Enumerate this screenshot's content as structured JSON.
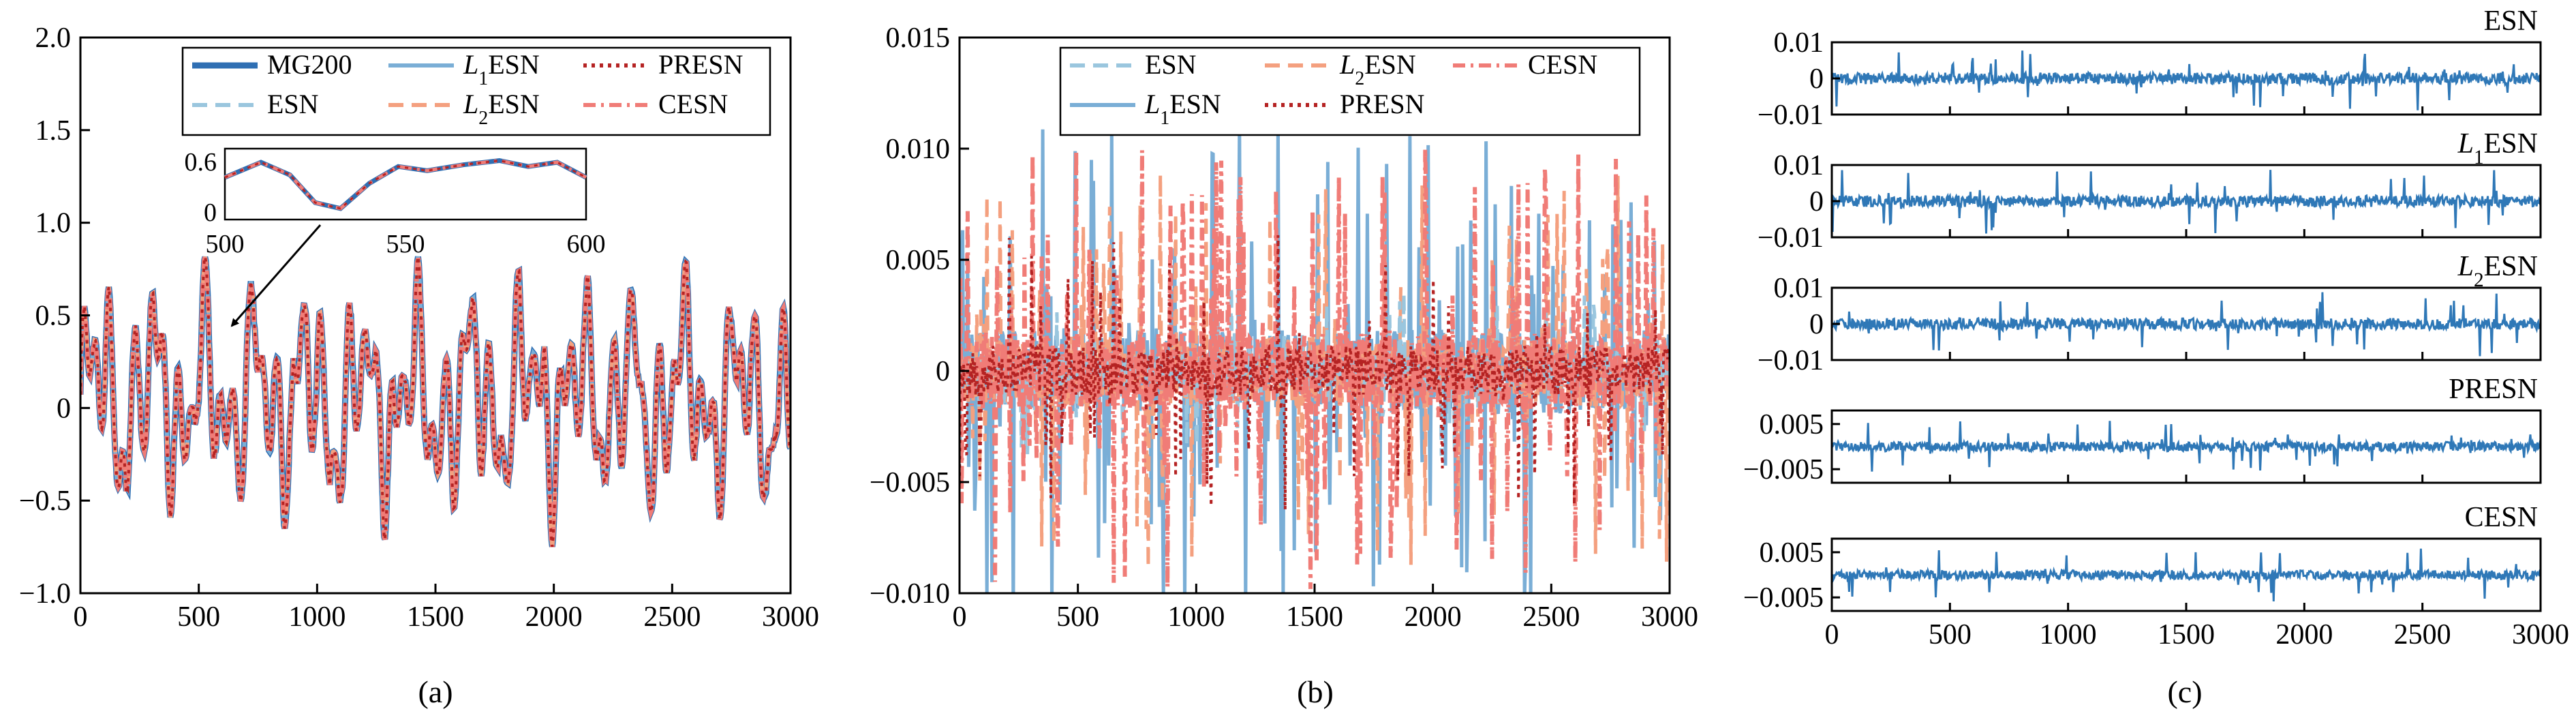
{
  "colors": {
    "mg200": "#2f6fb3",
    "esn": "#9ac6de",
    "l1esn": "#7aaed6",
    "l2esn": "#f4a07f",
    "presn": "#b52323",
    "cesn": "#f07c77",
    "error": "#2f78b7"
  },
  "chart_data": [
    {
      "panel": "(a)",
      "type": "line",
      "xlim": [
        0,
        3000
      ],
      "ylim": [
        -1.0,
        2.0
      ],
      "x_ticks": [
        "0",
        "500",
        "1000",
        "1500",
        "2000",
        "2500",
        "3000"
      ],
      "y_ticks": [
        "2.0",
        "1.5",
        "1.0",
        "0.5",
        "0",
        "−0.5",
        "−1.0"
      ],
      "legend": [
        {
          "label": "MG200",
          "style": "solid-thick",
          "color": "#2f6fb3"
        },
        {
          "label": "L1ESN",
          "style": "solid",
          "color": "#7aaed6"
        },
        {
          "label": "PRESN",
          "style": "dotted",
          "color": "#b52323"
        },
        {
          "label": "ESN",
          "style": "dashed",
          "color": "#9ac6de"
        },
        {
          "label": "L2ESN",
          "style": "dashed",
          "color": "#f4a07f"
        },
        {
          "label": "CESN",
          "style": "dashdot",
          "color": "#f07c77"
        }
      ],
      "series_envelope": {
        "min": -0.9,
        "max": 0.82
      },
      "inset": {
        "xlim": [
          500,
          600
        ],
        "ylim": [
          0,
          0.6
        ],
        "x_ticks": [
          "500",
          "550",
          "600"
        ],
        "y_ticks": [
          "0.6",
          "0"
        ],
        "points": [
          [
            500,
            0.42
          ],
          [
            510,
            0.6
          ],
          [
            518,
            0.45
          ],
          [
            525,
            0.12
          ],
          [
            532,
            0.05
          ],
          [
            540,
            0.35
          ],
          [
            548,
            0.55
          ],
          [
            556,
            0.5
          ],
          [
            566,
            0.57
          ],
          [
            576,
            0.62
          ],
          [
            584,
            0.55
          ],
          [
            592,
            0.6
          ],
          [
            600,
            0.42
          ]
        ]
      }
    },
    {
      "panel": "(b)",
      "type": "line",
      "xlim": [
        0,
        3000
      ],
      "ylim": [
        -0.01,
        0.015
      ],
      "x_ticks": [
        "0",
        "500",
        "1000",
        "1500",
        "2000",
        "2500",
        "3000"
      ],
      "y_ticks": [
        "0.015",
        "0.010",
        "0.005",
        "0",
        "−0.005",
        "−0.010"
      ],
      "legend": [
        {
          "label": "ESN",
          "style": "dashed",
          "color": "#9ac6de"
        },
        {
          "label": "L2ESN",
          "style": "dashed",
          "color": "#f4a07f"
        },
        {
          "label": "CESN",
          "style": "dashdot",
          "color": "#f07c77"
        },
        {
          "label": "L1ESN",
          "style": "solid",
          "color": "#7aaed6"
        },
        {
          "label": "PRESN",
          "style": "dotted",
          "color": "#b52323"
        }
      ],
      "series_envelope": [
        {
          "name": "L1ESN",
          "max_abs": 0.011
        },
        {
          "name": "L2ESN",
          "max_abs": 0.009
        },
        {
          "name": "CESN",
          "max_abs": 0.01
        },
        {
          "name": "PRESN",
          "max_abs": 0.0065
        },
        {
          "name": "ESN",
          "max_abs": 0.004
        }
      ]
    },
    {
      "panel": "(c)",
      "type": "line",
      "xlim": [
        0,
        3000
      ],
      "x_ticks": [
        "0",
        "500",
        "1000",
        "1500",
        "2000",
        "2500",
        "3000"
      ],
      "subplots": [
        {
          "title": "ESN",
          "ylim": [
            -0.01,
            0.01
          ],
          "y_ticks": [
            "0.01",
            "0",
            "−0.01"
          ],
          "max_abs": 0.009
        },
        {
          "title": "L1ESN",
          "ylim": [
            -0.01,
            0.01
          ],
          "y_ticks": [
            "0.01",
            "0",
            "−0.01"
          ],
          "max_abs": 0.009
        },
        {
          "title": "L2ESN",
          "ylim": [
            -0.01,
            0.01
          ],
          "y_ticks": [
            "0.01",
            "0",
            "−0.01"
          ],
          "max_abs": 0.009
        },
        {
          "title": "PRESN",
          "ylim": [
            -0.008,
            0.008
          ],
          "y_ticks": [
            "0.005",
            "−0.005"
          ],
          "max_abs": 0.006
        },
        {
          "title": "CESN",
          "ylim": [
            -0.008,
            0.008
          ],
          "y_ticks": [
            "0.005",
            "−0.005"
          ],
          "max_abs": 0.006
        }
      ]
    }
  ],
  "labels": {
    "a": "(a)",
    "b": "(b)",
    "c": "(c)"
  }
}
